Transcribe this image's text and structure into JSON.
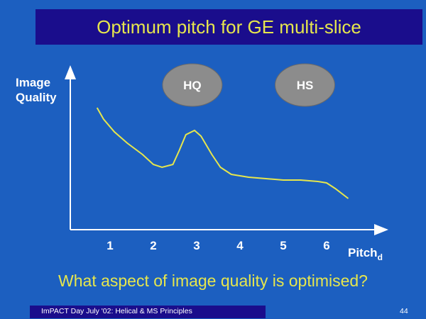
{
  "slide": {
    "title": "Optimum pitch for GE multi-slice",
    "question": "What aspect of image quality is optimised?",
    "footer": "ImPACT Day July '02: Helical & MS Principles",
    "page_number": "44"
  },
  "colors": {
    "background": "#1c5fc0",
    "title_bar": "#1a0d8c",
    "title_text": "#e6e64d",
    "curve": "#e6e64d",
    "oval": "#8c8c8c"
  },
  "chart_data": {
    "type": "line",
    "ylabel_lines": [
      "Image",
      "Quality"
    ],
    "xlabel": "Pitch",
    "xlabel_subscript": "d",
    "categories": [
      "1",
      "2",
      "3",
      "4",
      "5",
      "6"
    ],
    "xlim": [
      0,
      6.6
    ],
    "series": [
      {
        "x": [
          0.7,
          0.85,
          1.1,
          1.4,
          1.75,
          2.0,
          2.2,
          2.45,
          2.6,
          2.75,
          2.95,
          3.1,
          3.35,
          3.55,
          3.8,
          4.2,
          4.6,
          5.0,
          5.4,
          5.8,
          6.0,
          6.2,
          6.5
        ],
        "y": [
          0.86,
          0.78,
          0.69,
          0.61,
          0.53,
          0.46,
          0.44,
          0.46,
          0.56,
          0.67,
          0.7,
          0.66,
          0.53,
          0.44,
          0.39,
          0.37,
          0.36,
          0.35,
          0.35,
          0.34,
          0.33,
          0.29,
          0.22
        ]
      }
    ],
    "annotations": [
      {
        "text": "HQ",
        "x": 2.9
      },
      {
        "text": "HS",
        "x": 5.5
      }
    ],
    "grid": false
  }
}
